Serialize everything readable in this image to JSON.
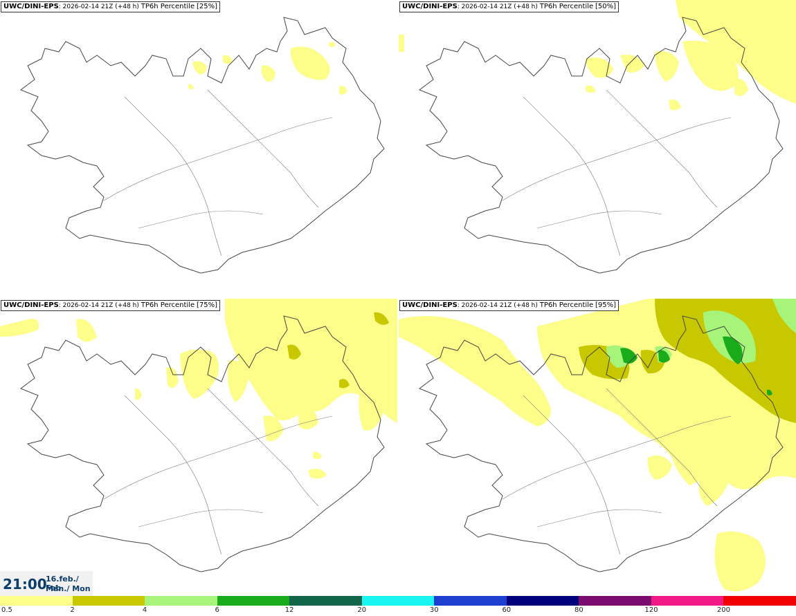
{
  "panels": [
    {
      "model": "UWC/DINI-EPS",
      "run": ": 2026-02-14 21Z (+48 h)",
      "field": "TP6h Percentile",
      "percentile": "[25%]"
    },
    {
      "model": "UWC/DINI-EPS",
      "run": ": 2026-02-14 21Z (+48 h)",
      "field": "TP6h Percentile",
      "percentile": "[50%]"
    },
    {
      "model": "UWC/DINI-EPS",
      "run": ": 2026-02-14 21Z (+48 h)",
      "field": "TP6h Percentile",
      "percentile": "[75%]"
    },
    {
      "model": "UWC/DINI-EPS",
      "run": ": 2026-02-14 21Z (+48 h)",
      "field": "TP6h Percentile",
      "percentile": "[95%]"
    }
  ],
  "valid_time": {
    "time": "21:00",
    "date": "16.feb./ Feb",
    "day": "Mán./ Mon"
  },
  "legend": {
    "ticks": [
      "0.5",
      "2",
      "4",
      "6",
      "12",
      "20",
      "30",
      "60",
      "80",
      "120",
      "200"
    ],
    "colors": [
      "#fdfd8a",
      "#c8c800",
      "#a6f57a",
      "#1aab1a",
      "#11664a",
      "#19f5f0",
      "#1d3fd0",
      "#00007a",
      "#7b0b6e",
      "#f01985",
      "#f00000"
    ]
  },
  "colors": {
    "light_yellow": "#fdfd8a",
    "olive": "#c8c800",
    "light_green": "#a6f57a",
    "green": "#1aab1a"
  }
}
